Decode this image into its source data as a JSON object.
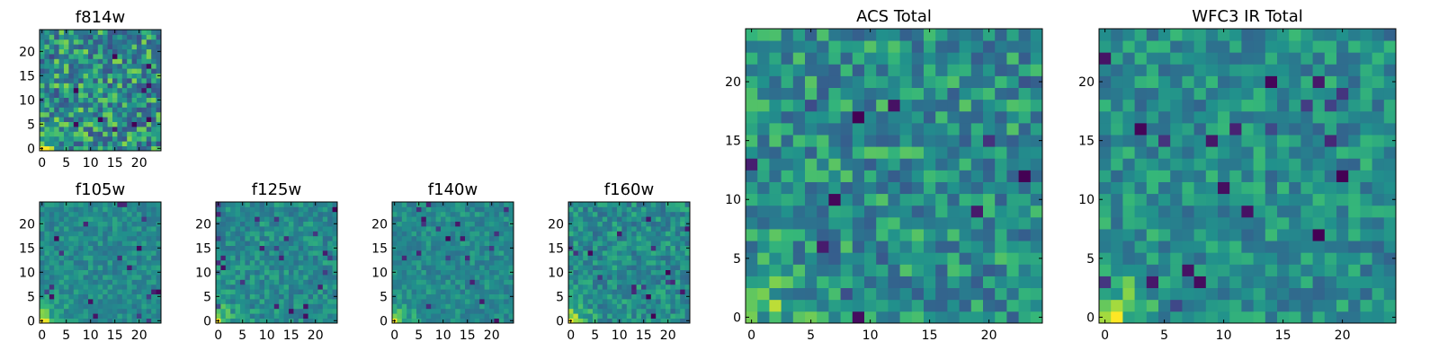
{
  "colormap": "viridis",
  "chart_data": [
    {
      "type": "heatmap",
      "title": "f814w",
      "grid_size": 25,
      "xlim": [
        0,
        24
      ],
      "ylim": [
        0,
        24
      ],
      "xticks": [
        "0",
        "5",
        "10",
        "15",
        "20"
      ],
      "yticks": [
        "0",
        "5",
        "10",
        "15",
        "20"
      ],
      "value_range": [
        0,
        1
      ],
      "bright_corner": "bottom-left",
      "noise_level": 0.28
    },
    {
      "type": "heatmap",
      "title": "f105w",
      "grid_size": 25,
      "xlim": [
        0,
        24
      ],
      "ylim": [
        0,
        24
      ],
      "xticks": [
        "0",
        "5",
        "10",
        "15",
        "20"
      ],
      "yticks": [
        "0",
        "5",
        "10",
        "15",
        "20"
      ],
      "value_range": [
        0,
        1
      ],
      "bright_corner": "bottom-left",
      "noise_level": 0.12
    },
    {
      "type": "heatmap",
      "title": "f125w",
      "grid_size": 25,
      "xlim": [
        0,
        24
      ],
      "ylim": [
        0,
        24
      ],
      "xticks": [
        "0",
        "5",
        "10",
        "15",
        "20"
      ],
      "yticks": [
        "0",
        "5",
        "10",
        "15",
        "20"
      ],
      "value_range": [
        0,
        1
      ],
      "bright_corner": "bottom-left",
      "noise_level": 0.14
    },
    {
      "type": "heatmap",
      "title": "f140w",
      "grid_size": 25,
      "xlim": [
        0,
        24
      ],
      "ylim": [
        0,
        24
      ],
      "xticks": [
        "0",
        "5",
        "10",
        "15",
        "20"
      ],
      "yticks": [
        "0",
        "5",
        "10",
        "15",
        "20"
      ],
      "value_range": [
        0,
        1
      ],
      "bright_corner": "bottom-left",
      "noise_level": 0.12
    },
    {
      "type": "heatmap",
      "title": "f160w",
      "grid_size": 25,
      "xlim": [
        0,
        24
      ],
      "ylim": [
        0,
        24
      ],
      "xticks": [
        "0",
        "5",
        "10",
        "15",
        "20"
      ],
      "yticks": [
        "0",
        "5",
        "10",
        "15",
        "20"
      ],
      "value_range": [
        0,
        1
      ],
      "bright_corner": "bottom-left",
      "noise_level": 0.16
    },
    {
      "type": "heatmap",
      "title": "ACS Total",
      "grid_size": 25,
      "xlim": [
        0,
        24
      ],
      "ylim": [
        0,
        24
      ],
      "xticks": [
        "0",
        "5",
        "10",
        "15",
        "20"
      ],
      "yticks": [
        "0",
        "5",
        "10",
        "15",
        "20"
      ],
      "value_range": [
        0,
        1
      ],
      "bright_corner": "bottom-left",
      "noise_level": 0.22
    },
    {
      "type": "heatmap",
      "title": "WFC3 IR Total",
      "grid_size": 25,
      "xlim": [
        0,
        24
      ],
      "ylim": [
        0,
        24
      ],
      "xticks": [
        "0",
        "5",
        "10",
        "15",
        "20"
      ],
      "yticks": [
        "0",
        "5",
        "10",
        "15",
        "20"
      ],
      "value_range": [
        0,
        1
      ],
      "bright_corner": "bottom-left",
      "noise_level": 0.18
    }
  ]
}
